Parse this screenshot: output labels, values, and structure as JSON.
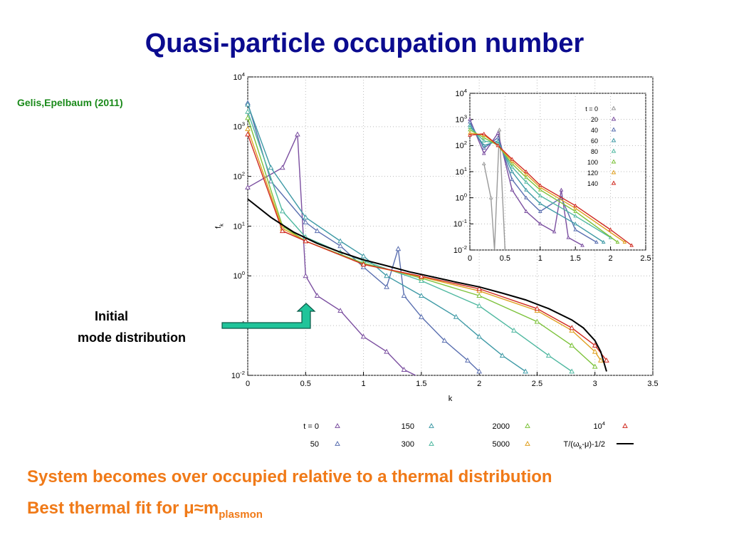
{
  "slide": {
    "title": "Quasi-particle occupation number",
    "citation": "Gelis,Epelbaum (2011)",
    "annotation_line1": "Initial",
    "annotation_line2": "mode distribution",
    "conclusion_line1": "System becomes over occupied relative to a thermal distribution",
    "conclusion_line2_main": "Best thermal fit for μ≈m",
    "conclusion_line2_sub": "plasmon"
  },
  "colors": {
    "title": "#0b0b8f",
    "citation": "#1a8a1a",
    "conclusion": "#f07a18",
    "arrow": "#20c49a"
  },
  "chart_data": [
    {
      "type": "line",
      "xlabel": "k",
      "ylabel": "f_k",
      "xlim": [
        0,
        3.5
      ],
      "ylim": [
        0.01,
        10000
      ],
      "yscale": "log",
      "x_ticks": [
        "0",
        "0.5",
        "1",
        "1.5",
        "2",
        "2.5",
        "3",
        "3.5"
      ],
      "y_ticks": [
        "10^-2",
        "10^-1",
        "10^0",
        "10^1",
        "10^2",
        "10^3",
        "10^4"
      ],
      "legend_position": "bottom",
      "series": [
        {
          "name": "t = 0",
          "color": "#7b4fa0",
          "marker": "triangle",
          "points": [
            [
              0,
              60
            ],
            [
              0.3,
              150
            ],
            [
              0.43,
              700
            ],
            [
              0.5,
              1
            ],
            [
              0.6,
              0.4
            ],
            [
              0.8,
              0.2
            ],
            [
              1.0,
              0.06
            ],
            [
              1.2,
              0.03
            ],
            [
              1.35,
              0.013
            ],
            [
              1.45,
              0.01
            ]
          ]
        },
        {
          "name": "50",
          "color": "#5a6fb0",
          "marker": "triangle",
          "points": [
            [
              0,
              3000
            ],
            [
              0.2,
              80
            ],
            [
              0.5,
              12
            ],
            [
              0.6,
              8
            ],
            [
              0.8,
              4
            ],
            [
              1.0,
              1.5
            ],
            [
              1.2,
              0.6
            ],
            [
              1.3,
              3.5
            ],
            [
              1.35,
              0.4
            ],
            [
              1.5,
              0.15
            ],
            [
              1.7,
              0.05
            ],
            [
              1.9,
              0.02
            ],
            [
              2.0,
              0.012
            ]
          ]
        },
        {
          "name": "150",
          "color": "#3f9aa6",
          "marker": "triangle",
          "points": [
            [
              0,
              2800
            ],
            [
              0.2,
              150
            ],
            [
              0.5,
              15
            ],
            [
              0.8,
              5
            ],
            [
              1.0,
              2.5
            ],
            [
              1.2,
              1
            ],
            [
              1.5,
              0.4
            ],
            [
              1.8,
              0.15
            ],
            [
              2.0,
              0.06
            ],
            [
              2.2,
              0.025
            ],
            [
              2.4,
              0.012
            ]
          ]
        },
        {
          "name": "300",
          "color": "#4fb8a0",
          "marker": "triangle",
          "points": [
            [
              0,
              2000
            ],
            [
              0.3,
              20
            ],
            [
              0.5,
              6
            ],
            [
              0.8,
              3
            ],
            [
              1.0,
              2
            ],
            [
              1.5,
              0.8
            ],
            [
              2.0,
              0.25
            ],
            [
              2.3,
              0.08
            ],
            [
              2.6,
              0.025
            ],
            [
              2.8,
              0.012
            ]
          ]
        },
        {
          "name": "2000",
          "color": "#7cc23a",
          "marker": "triangle",
          "points": [
            [
              0,
              1500
            ],
            [
              0.3,
              10
            ],
            [
              0.5,
              5
            ],
            [
              1.0,
              1.8
            ],
            [
              1.5,
              0.9
            ],
            [
              2.0,
              0.4
            ],
            [
              2.5,
              0.12
            ],
            [
              2.8,
              0.04
            ],
            [
              3.0,
              0.015
            ]
          ]
        },
        {
          "name": "5000",
          "color": "#e0a020",
          "marker": "triangle",
          "points": [
            [
              0,
              900
            ],
            [
              0.3,
              9
            ],
            [
              0.5,
              5
            ],
            [
              1.0,
              1.7
            ],
            [
              1.5,
              0.95
            ],
            [
              2.0,
              0.5
            ],
            [
              2.5,
              0.2
            ],
            [
              2.8,
              0.08
            ],
            [
              3.0,
              0.03
            ],
            [
              3.05,
              0.02
            ]
          ]
        },
        {
          "name": "10^4",
          "color": "#d02a20",
          "marker": "triangle",
          "points": [
            [
              0,
              700
            ],
            [
              0.3,
              8
            ],
            [
              0.5,
              5
            ],
            [
              1.0,
              1.7
            ],
            [
              1.5,
              0.98
            ],
            [
              2.0,
              0.55
            ],
            [
              2.5,
              0.22
            ],
            [
              2.8,
              0.09
            ],
            [
              3.0,
              0.04
            ],
            [
              3.1,
              0.02
            ]
          ]
        },
        {
          "name": "T/(ω_k-μ)-1/2",
          "color": "#000000",
          "marker": "none",
          "points": [
            [
              0,
              35
            ],
            [
              0.2,
              15
            ],
            [
              0.4,
              7.5
            ],
            [
              0.6,
              4.5
            ],
            [
              0.8,
              3
            ],
            [
              1.0,
              2.1
            ],
            [
              1.2,
              1.6
            ],
            [
              1.4,
              1.2
            ],
            [
              1.6,
              0.95
            ],
            [
              1.8,
              0.75
            ],
            [
              2.0,
              0.6
            ],
            [
              2.2,
              0.45
            ],
            [
              2.4,
              0.33
            ],
            [
              2.6,
              0.22
            ],
            [
              2.8,
              0.13
            ],
            [
              2.9,
              0.09
            ],
            [
              3.0,
              0.05
            ],
            [
              3.05,
              0.03
            ],
            [
              3.1,
              0.012
            ]
          ]
        }
      ]
    },
    {
      "type": "line",
      "xlim": [
        0,
        2.5
      ],
      "ylim": [
        0.01,
        10000
      ],
      "yscale": "log",
      "x_ticks": [
        "0",
        "0.5",
        "1",
        "1.5",
        "2",
        "2.5"
      ],
      "y_ticks": [
        "10^-2",
        "10^-1",
        "10^0",
        "10^1",
        "10^2",
        "10^3",
        "10^4"
      ],
      "legend_position": "top-right",
      "series": [
        {
          "name": "t = 0",
          "color": "#999999",
          "points": [
            [
              0.2,
              20
            ],
            [
              0.3,
              1
            ],
            [
              0.35,
              0.01
            ],
            [
              0.42,
              400
            ],
            [
              0.5,
              0.01
            ]
          ]
        },
        {
          "name": "20",
          "color": "#7b4fa0",
          "points": [
            [
              0,
              1000
            ],
            [
              0.2,
              50
            ],
            [
              0.4,
              300
            ],
            [
              0.6,
              2
            ],
            [
              0.8,
              0.3
            ],
            [
              1.0,
              0.1
            ],
            [
              1.2,
              0.05
            ],
            [
              1.3,
              2
            ],
            [
              1.4,
              0.03
            ],
            [
              1.6,
              0.015
            ]
          ]
        },
        {
          "name": "40",
          "color": "#5a6fb0",
          "points": [
            [
              0,
              800
            ],
            [
              0.2,
              80
            ],
            [
              0.4,
              200
            ],
            [
              0.6,
              5
            ],
            [
              0.8,
              1
            ],
            [
              1.0,
              0.3
            ],
            [
              1.3,
              1
            ],
            [
              1.5,
              0.06
            ],
            [
              1.8,
              0.02
            ]
          ]
        },
        {
          "name": "60",
          "color": "#3f9aa6",
          "points": [
            [
              0,
              600
            ],
            [
              0.2,
              100
            ],
            [
              0.4,
              150
            ],
            [
              0.6,
              10
            ],
            [
              0.8,
              2
            ],
            [
              1.0,
              0.6
            ],
            [
              1.5,
              0.1
            ],
            [
              1.9,
              0.02
            ]
          ]
        },
        {
          "name": "80",
          "color": "#4fb8a0",
          "points": [
            [
              0,
              500
            ],
            [
              0.2,
              150
            ],
            [
              0.4,
              120
            ],
            [
              0.6,
              15
            ],
            [
              0.8,
              4
            ],
            [
              1.0,
              1.2
            ],
            [
              1.5,
              0.2
            ],
            [
              2.0,
              0.03
            ]
          ]
        },
        {
          "name": "100",
          "color": "#7cc23a",
          "points": [
            [
              0,
              400
            ],
            [
              0.2,
              200
            ],
            [
              0.4,
              100
            ],
            [
              0.6,
              20
            ],
            [
              0.8,
              6
            ],
            [
              1.0,
              2
            ],
            [
              1.5,
              0.3
            ],
            [
              2.1,
              0.02
            ]
          ]
        },
        {
          "name": "120",
          "color": "#e0a020",
          "points": [
            [
              0,
              300
            ],
            [
              0.2,
              250
            ],
            [
              0.4,
              100
            ],
            [
              0.6,
              25
            ],
            [
              0.8,
              8
            ],
            [
              1.0,
              2.5
            ],
            [
              1.5,
              0.4
            ],
            [
              2.2,
              0.02
            ]
          ]
        },
        {
          "name": "140",
          "color": "#d02a20",
          "points": [
            [
              0,
              250
            ],
            [
              0.2,
              280
            ],
            [
              0.4,
              100
            ],
            [
              0.6,
              30
            ],
            [
              0.8,
              10
            ],
            [
              1.0,
              3
            ],
            [
              1.5,
              0.5
            ],
            [
              2.0,
              0.06
            ],
            [
              2.3,
              0.015
            ]
          ]
        }
      ]
    }
  ]
}
